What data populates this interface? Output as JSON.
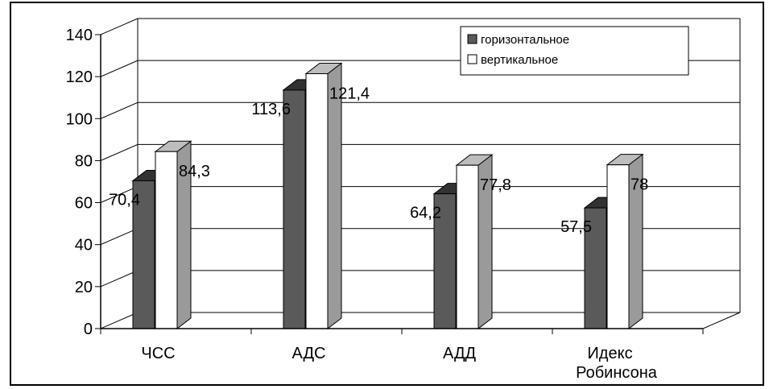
{
  "chart_data": {
    "type": "bar",
    "categories": [
      "ЧСС",
      "АДС",
      "АДД",
      [
        "Идекс",
        "Робинсона"
      ]
    ],
    "series": [
      {
        "name": "горизонтальное",
        "values": [
          70.4,
          113.6,
          64.2,
          57.5
        ],
        "labels": [
          "70,4",
          "113,6",
          "64,2",
          "57,5"
        ],
        "color": "#5a5a5a"
      },
      {
        "name": "вертикальное",
        "values": [
          84.3,
          121.4,
          77.8,
          78
        ],
        "labels": [
          "84,3",
          "121,4",
          "77,8",
          "78"
        ],
        "color": "#ffffff"
      }
    ],
    "ylim": [
      0,
      140
    ],
    "yticks": [
      "0",
      "20",
      "40",
      "60",
      "80",
      "100",
      "120",
      "140"
    ],
    "grid": true,
    "legend": "top-right",
    "style": "3d-columns"
  }
}
